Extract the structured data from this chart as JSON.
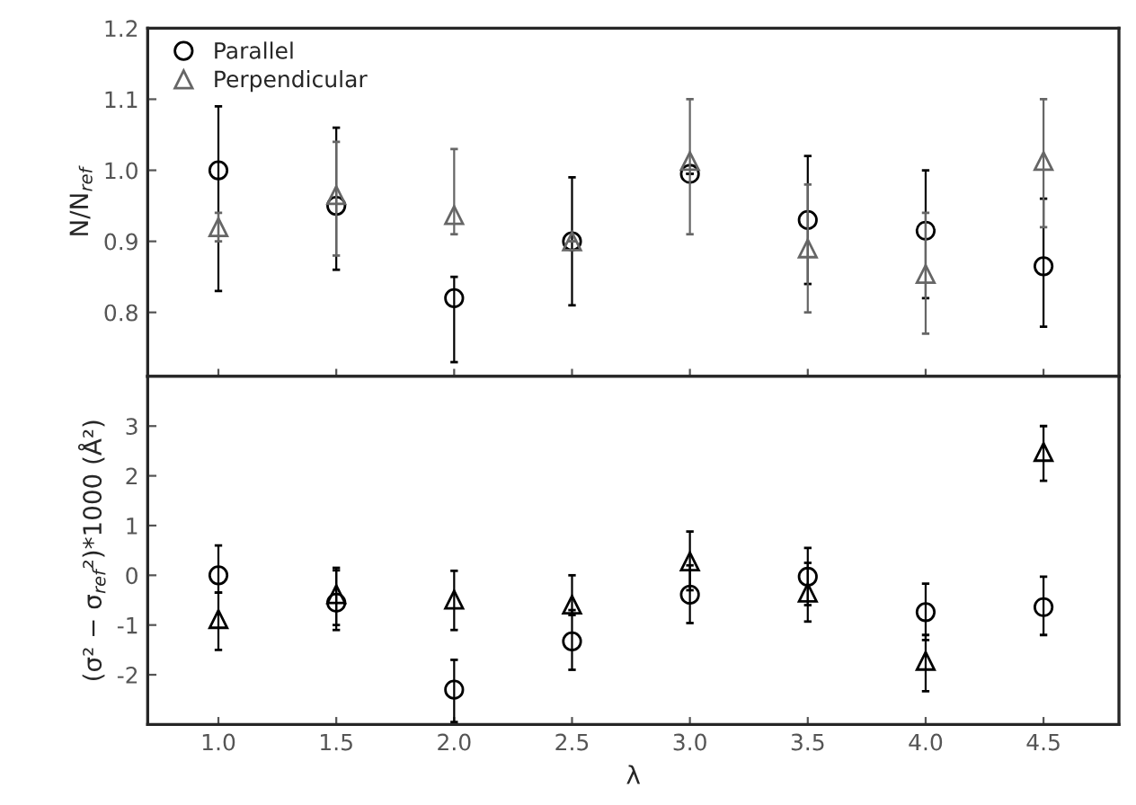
{
  "chart_data": [
    {
      "type": "scatter",
      "ylabel": "N/N$_{ref}$",
      "x": [
        1.0,
        1.5,
        2.0,
        2.5,
        3.0,
        3.5,
        4.0,
        4.5
      ],
      "xlim": [
        0.7,
        4.82
      ],
      "xticks": [
        {
          "value": 1.0,
          "label": null
        },
        {
          "value": 1.5,
          "label": null
        },
        {
          "value": 2.0,
          "label": null
        },
        {
          "value": 2.5,
          "label": null
        },
        {
          "value": 3.0,
          "label": null
        },
        {
          "value": 3.5,
          "label": null
        },
        {
          "value": 4.0,
          "label": null
        },
        {
          "value": 4.5,
          "label": null
        }
      ],
      "ylim": [
        0.71,
        1.2
      ],
      "yticks": [
        {
          "value": 0.8,
          "label": "0.8"
        },
        {
          "value": 0.9,
          "label": "0.9"
        },
        {
          "value": 1.0,
          "label": "1.0"
        },
        {
          "value": 1.1,
          "label": "1.1"
        },
        {
          "value": 1.2,
          "label": "1.2"
        }
      ],
      "tick_labels": "y",
      "legend": "top left",
      "grid": false,
      "series": [
        {
          "name": "Parallel",
          "color": "#000000",
          "marker": "circle",
          "values": [
            1.0,
            0.95,
            0.82,
            0.9,
            0.995,
            0.93,
            0.915,
            0.865
          ],
          "errors": [
            [
              0.83,
              1.09
            ],
            [
              0.86,
              1.06
            ],
            [
              0.73,
              0.85
            ],
            [
              0.81,
              0.99
            ],
            null,
            [
              0.84,
              1.02
            ],
            [
              0.82,
              1.0
            ],
            [
              0.78,
              0.96
            ]
          ]
        },
        {
          "name": "Perpendicular",
          "color": "#666666",
          "marker": "triangle",
          "values": [
            0.92,
            0.965,
            0.937,
            0.9,
            1.013,
            0.89,
            0.854,
            1.013
          ],
          "errors": [
            [
              0.9,
              0.94
            ],
            [
              0.88,
              1.04
            ],
            [
              0.91,
              1.03
            ],
            null,
            [
              0.91,
              1.1
            ],
            [
              0.8,
              0.98
            ],
            [
              0.77,
              0.94
            ],
            [
              0.92,
              1.1
            ]
          ]
        }
      ]
    },
    {
      "type": "scatter",
      "xlabel": "λ",
      "ylabel": "(σ² − σ$_{ref}$²)*1000 (Å²)",
      "x": [
        1.0,
        1.5,
        2.0,
        2.5,
        3.0,
        3.5,
        4.0,
        4.5
      ],
      "xlim": [
        0.7,
        4.82
      ],
      "xticks": [
        {
          "value": 1.0,
          "label": "1.0"
        },
        {
          "value": 1.5,
          "label": "1.5"
        },
        {
          "value": 2.0,
          "label": "2.0"
        },
        {
          "value": 2.5,
          "label": "2.5"
        },
        {
          "value": 3.0,
          "label": "3.0"
        },
        {
          "value": 3.5,
          "label": "3.5"
        },
        {
          "value": 4.0,
          "label": "4.0"
        },
        {
          "value": 4.5,
          "label": "4.5"
        }
      ],
      "ylim": [
        -3,
        4
      ],
      "yticks": [
        -2,
        -1,
        0,
        1,
        2,
        3
      ],
      "grid": false,
      "series": [
        {
          "color": "#000000",
          "marker": "circle",
          "values": [
            0.0,
            -0.55,
            -2.3,
            -1.33,
            -0.39,
            -0.03,
            -0.74,
            -0.64
          ],
          "errors": [
            [
              -0.35,
              0.6
            ],
            [
              -1.1,
              0.1
            ],
            [
              -2.95,
              -1.7
            ],
            [
              -1.9,
              -0.7
            ],
            [
              -0.96,
              0.2
            ],
            [
              -0.6,
              0.55
            ],
            [
              -1.3,
              -0.17
            ],
            [
              -1.2,
              -0.03
            ]
          ]
        },
        {
          "color": "#000000",
          "marker": "triangle",
          "values": [
            -0.88,
            -0.38,
            -0.49,
            -0.59,
            0.28,
            -0.35,
            -1.72,
            2.48
          ],
          "errors": [
            [
              -1.5,
              -0.35
            ],
            [
              -1.0,
              0.15
            ],
            [
              -1.1,
              0.09
            ],
            [
              -0.8,
              0.0
            ],
            [
              -0.3,
              0.88
            ],
            [
              -0.93,
              0.25
            ],
            [
              -2.33,
              -1.2
            ],
            [
              1.9,
              3.0
            ]
          ]
        }
      ]
    }
  ]
}
